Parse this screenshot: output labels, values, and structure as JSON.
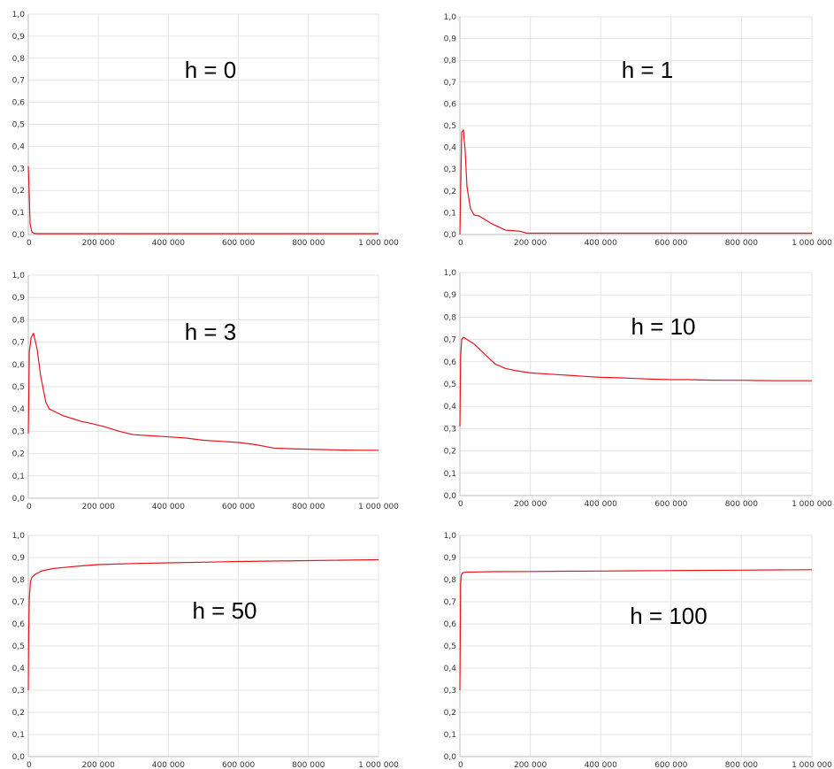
{
  "chart_data": [
    {
      "type": "line",
      "title": "h = 0",
      "xlabel": "",
      "ylabel": "",
      "xlim": [
        0,
        1000000
      ],
      "ylim": [
        0,
        1
      ],
      "x_tick_labels": [
        "0",
        "200 000",
        "400 000",
        "600 000",
        "800 000",
        "1 000 000"
      ],
      "y_tick_labels": [
        "0,0",
        "0,1",
        "0,2",
        "0,3",
        "0,4",
        "0,5",
        "0,6",
        "0,7",
        "0,8",
        "0,9",
        "1,0"
      ],
      "grid": true,
      "series": [
        {
          "color": "#e8141c",
          "x": [
            0,
            2000,
            5000,
            10000,
            15000,
            25000,
            50000,
            1000000
          ],
          "y": [
            0.31,
            0.22,
            0.05,
            0.012,
            0.006,
            0.004,
            0.004,
            0.004
          ]
        }
      ]
    },
    {
      "type": "line",
      "title": "h = 1",
      "xlabel": "",
      "ylabel": "",
      "xlim": [
        0,
        1000000
      ],
      "ylim": [
        0,
        1
      ],
      "x_tick_labels": [
        "0",
        "200 000",
        "400 000",
        "600 000",
        "800 000",
        "1 000 000"
      ],
      "y_tick_labels": [
        "0,0",
        "0,1",
        "0,2",
        "0,3",
        "0,4",
        "0,5",
        "0,6",
        "0,7",
        "0,8",
        "0,9",
        "1,0"
      ],
      "grid": true,
      "series": [
        {
          "color": "#e8141c",
          "x": [
            0,
            5000,
            10000,
            15000,
            20000,
            30000,
            40000,
            55000,
            70000,
            90000,
            110000,
            130000,
            150000,
            170000,
            190000,
            250000,
            1000000
          ],
          "y": [
            0.0,
            0.47,
            0.48,
            0.38,
            0.22,
            0.12,
            0.09,
            0.085,
            0.07,
            0.05,
            0.035,
            0.02,
            0.018,
            0.015,
            0.006,
            0.006,
            0.006
          ]
        }
      ]
    },
    {
      "type": "line",
      "title": "h = 3",
      "xlabel": "",
      "ylabel": "",
      "xlim": [
        0,
        1000000
      ],
      "ylim": [
        0,
        1
      ],
      "x_tick_labels": [
        "0",
        "200 000",
        "400 000",
        "600 000",
        "800 000",
        "1 000 000"
      ],
      "y_tick_labels": [
        "0,0",
        "0,1",
        "0,2",
        "0,3",
        "0,4",
        "0,5",
        "0,6",
        "0,7",
        "0,8",
        "0,9",
        "1,0"
      ],
      "grid": true,
      "series": [
        {
          "color": "#e8141c",
          "x": [
            0,
            3000,
            8000,
            15000,
            25000,
            35000,
            50000,
            60000,
            80000,
            100000,
            130000,
            150000,
            180000,
            220000,
            260000,
            300000,
            350000,
            400000,
            450000,
            500000,
            550000,
            600000,
            650000,
            700000,
            750000,
            800000,
            850000,
            900000,
            950000,
            1000000
          ],
          "y": [
            0.29,
            0.66,
            0.72,
            0.74,
            0.67,
            0.55,
            0.43,
            0.4,
            0.385,
            0.37,
            0.355,
            0.345,
            0.335,
            0.32,
            0.3,
            0.285,
            0.28,
            0.275,
            0.27,
            0.26,
            0.255,
            0.25,
            0.24,
            0.225,
            0.222,
            0.22,
            0.218,
            0.216,
            0.215,
            0.215
          ]
        }
      ]
    },
    {
      "type": "line",
      "title": "h = 10",
      "xlabel": "",
      "ylabel": "",
      "xlim": [
        0,
        1000000
      ],
      "ylim": [
        0,
        1
      ],
      "x_tick_labels": [
        "0",
        "200 000",
        "400 000",
        "600 000",
        "800 000",
        "1 000 000"
      ],
      "y_tick_labels": [
        "0,0",
        "0,1",
        "0,2",
        "0,3",
        "0,4",
        "0,5",
        "0,6",
        "0,7",
        "0,8",
        "0,9",
        "1,0"
      ],
      "grid": true,
      "series": [
        {
          "color": "#e8141c",
          "x": [
            0,
            2000,
            5000,
            10000,
            20000,
            40000,
            60000,
            80000,
            100000,
            130000,
            160000,
            200000,
            250000,
            300000,
            350000,
            400000,
            450000,
            500000,
            550000,
            600000,
            650000,
            700000,
            750000,
            800000,
            850000,
            900000,
            950000,
            1000000
          ],
          "y": [
            0.31,
            0.62,
            0.7,
            0.71,
            0.7,
            0.68,
            0.65,
            0.62,
            0.59,
            0.57,
            0.56,
            0.55,
            0.545,
            0.54,
            0.535,
            0.53,
            0.528,
            0.525,
            0.522,
            0.52,
            0.52,
            0.518,
            0.517,
            0.517,
            0.516,
            0.515,
            0.515,
            0.515
          ]
        }
      ]
    },
    {
      "type": "line",
      "title": "h = 50",
      "xlabel": "",
      "ylabel": "",
      "xlim": [
        0,
        1000000
      ],
      "ylim": [
        0,
        1
      ],
      "x_tick_labels": [
        "0",
        "200 000",
        "400 000",
        "600 000",
        "800 000",
        "1 000 000"
      ],
      "y_tick_labels": [
        "0,0",
        "0,1",
        "0,2",
        "0,3",
        "0,4",
        "0,5",
        "0,6",
        "0,7",
        "0,8",
        "0,9",
        "1,0"
      ],
      "grid": true,
      "series": [
        {
          "color": "#e8141c",
          "x": [
            0,
            1000,
            3000,
            6000,
            10000,
            20000,
            40000,
            70000,
            100000,
            150000,
            200000,
            300000,
            400000,
            500000,
            600000,
            700000,
            800000,
            900000,
            1000000
          ],
          "y": [
            0.3,
            0.55,
            0.72,
            0.79,
            0.81,
            0.825,
            0.84,
            0.85,
            0.855,
            0.862,
            0.868,
            0.873,
            0.876,
            0.879,
            0.882,
            0.884,
            0.886,
            0.888,
            0.89
          ]
        }
      ]
    },
    {
      "type": "line",
      "title": "h = 100",
      "xlabel": "",
      "ylabel": "",
      "xlim": [
        0,
        1000000
      ],
      "ylim": [
        0,
        1
      ],
      "x_tick_labels": [
        "0",
        "200 000",
        "400 000",
        "600 000",
        "800 000",
        "1 000 000"
      ],
      "y_tick_labels": [
        "0,0",
        "0,1",
        "0,2",
        "0,3",
        "0,4",
        "0,5",
        "0,6",
        "0,7",
        "0,8",
        "0,9",
        "1,0"
      ],
      "grid": true,
      "series": [
        {
          "color": "#e8141c",
          "x": [
            0,
            1000,
            2000,
            4000,
            7000,
            12000,
            20000,
            50000,
            100000,
            200000,
            300000,
            400000,
            500000,
            600000,
            700000,
            800000,
            900000,
            1000000
          ],
          "y": [
            0.3,
            0.55,
            0.78,
            0.82,
            0.83,
            0.833,
            0.834,
            0.835,
            0.836,
            0.837,
            0.838,
            0.839,
            0.84,
            0.841,
            0.842,
            0.843,
            0.844,
            0.845
          ]
        }
      ]
    }
  ]
}
